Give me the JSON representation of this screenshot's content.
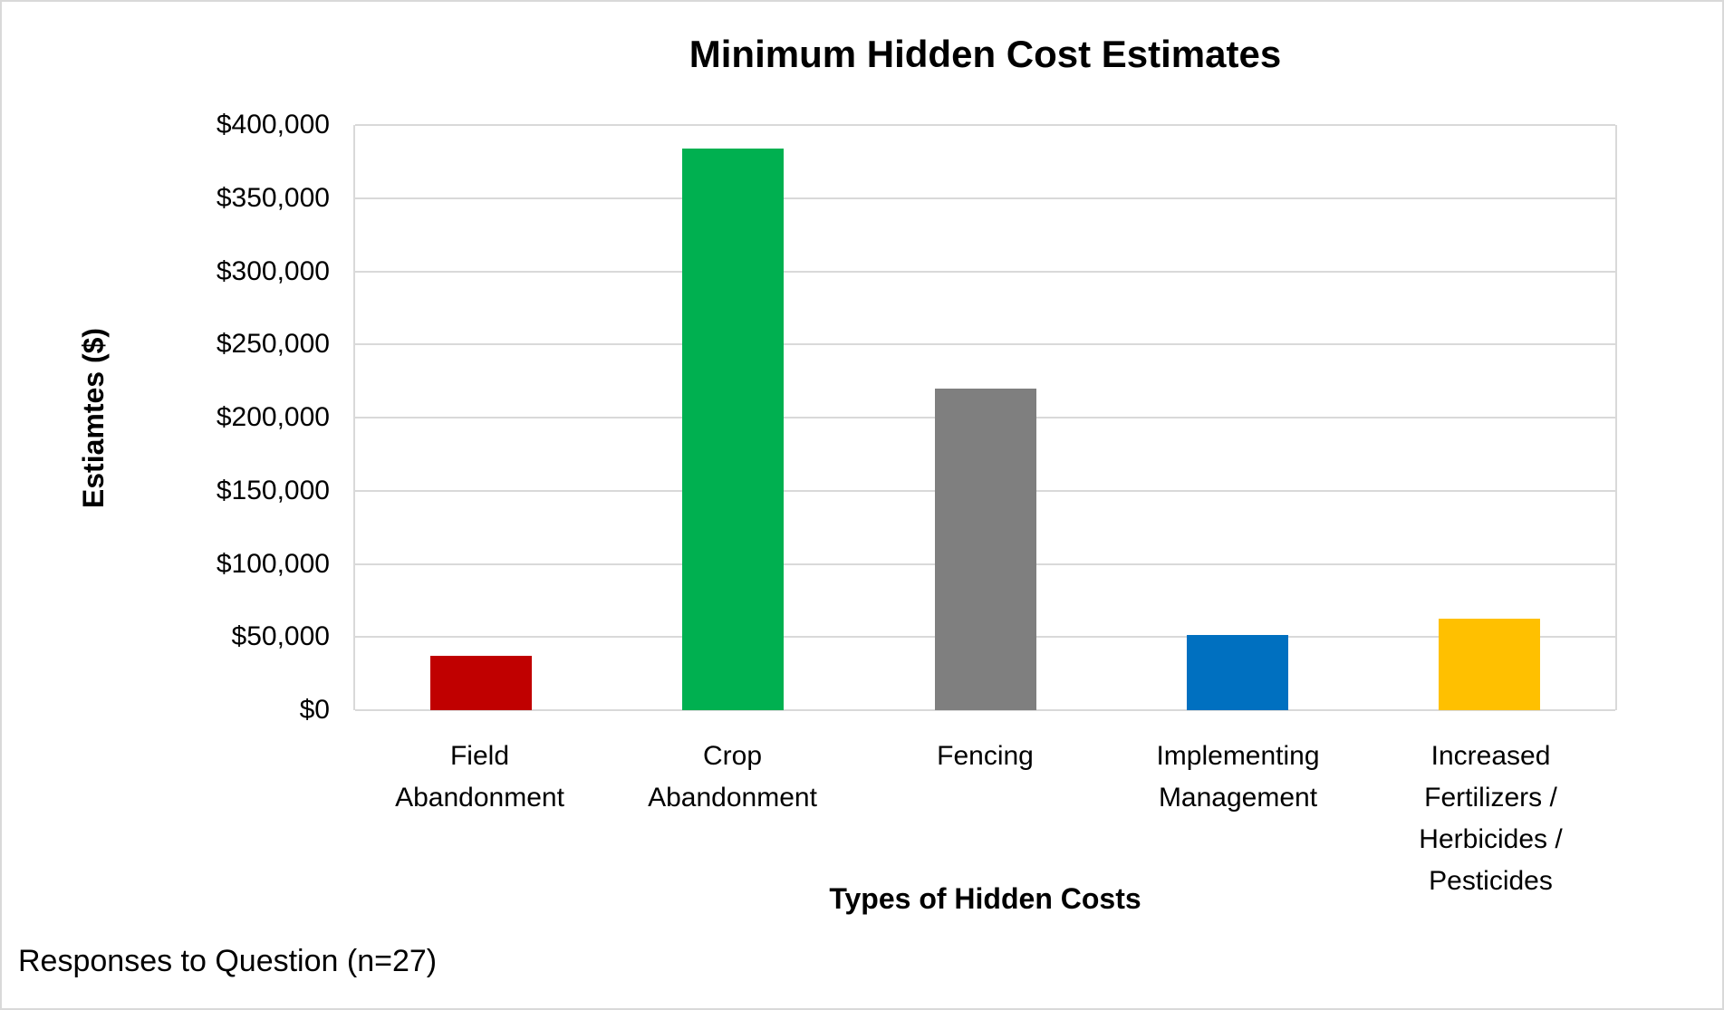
{
  "footer": {
    "note": "Responses to Question (n=27)"
  },
  "chart_data": {
    "type": "bar",
    "title": "Minimum Hidden Cost Estimates",
    "xlabel": "Types of Hidden Costs",
    "ylabel": "Estiamtes ($)",
    "categories": [
      "Field Abandonment",
      "Crop Abandonment",
      "Fencing",
      "Implementing Management",
      "Increased Fertilizers / Herbicides / Pesticides"
    ],
    "category_lines": [
      [
        "Field",
        "Abandonment"
      ],
      [
        "Crop",
        "Abandonment"
      ],
      [
        "Fencing"
      ],
      [
        "Implementing",
        "Management"
      ],
      [
        "Increased",
        "Fertilizers /",
        "Herbicides /",
        "Pesticides"
      ]
    ],
    "values": [
      37000,
      384000,
      220000,
      51500,
      62500
    ],
    "bar_colors": [
      "#C00000",
      "#00B050",
      "#7F7F7F",
      "#0070C0",
      "#FFC000"
    ],
    "ylim": [
      0,
      400000
    ],
    "ytick_step": 50000,
    "ytick_labels": [
      "$0",
      "$50,000",
      "$100,000",
      "$150,000",
      "$200,000",
      "$250,000",
      "$300,000",
      "$350,000",
      "$400,000"
    ],
    "grid": true,
    "gridline_color": "#D9D9D9",
    "legend": null,
    "annotation": "Responses to Question (n=27)"
  }
}
